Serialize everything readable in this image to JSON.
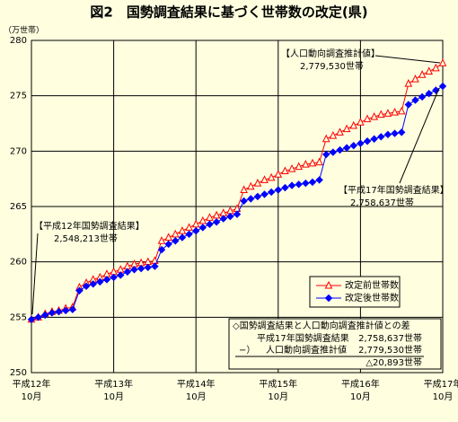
{
  "chart_data": {
    "type": "line",
    "title": "図2　国勢調査結果に基づく世帯数の改定(県)",
    "y_unit": "（万世帯）",
    "categories": [
      "平成12年\n10月",
      null,
      null,
      null,
      null,
      null,
      null,
      null,
      null,
      null,
      null,
      null,
      "平成13年\n10月",
      null,
      null,
      null,
      null,
      null,
      null,
      null,
      null,
      null,
      null,
      null,
      "平成14年\n10月",
      null,
      null,
      null,
      null,
      null,
      null,
      null,
      null,
      null,
      null,
      null,
      "平成15年\n10月",
      null,
      null,
      null,
      null,
      null,
      null,
      null,
      null,
      null,
      null,
      null,
      "平成16年\n10月",
      null,
      null,
      null,
      null,
      null,
      null,
      null,
      null,
      null,
      null,
      null,
      "平成17年\n10月"
    ],
    "series": [
      {
        "name": "改定前世帯数",
        "color": "#ff0000",
        "marker": "triangle",
        "values": [
          254.8,
          255.0,
          255.3,
          255.5,
          255.6,
          255.8,
          255.9,
          257.7,
          258.1,
          258.4,
          258.6,
          258.9,
          259.1,
          259.3,
          259.6,
          259.8,
          259.9,
          260.0,
          260.1,
          261.9,
          262.2,
          262.5,
          262.8,
          263.1,
          263.4,
          263.7,
          264.0,
          264.2,
          264.4,
          264.6,
          264.8,
          266.5,
          266.8,
          267.1,
          267.4,
          267.6,
          267.9,
          268.2,
          268.4,
          268.6,
          268.8,
          268.9,
          269.0,
          271.1,
          271.4,
          271.7,
          272.0,
          272.3,
          272.6,
          272.9,
          273.1,
          273.3,
          273.4,
          273.5,
          273.6,
          276.1,
          276.5,
          276.9,
          277.2,
          277.5,
          277.95
        ]
      },
      {
        "name": "改定後世帯数",
        "color": "#0000ff",
        "marker": "diamond",
        "values": [
          254.8,
          255.0,
          255.2,
          255.4,
          255.5,
          255.6,
          255.7,
          257.4,
          257.8,
          258.0,
          258.2,
          258.4,
          258.6,
          258.8,
          259.1,
          259.3,
          259.4,
          259.5,
          259.6,
          261.1,
          261.6,
          261.9,
          262.2,
          262.5,
          262.8,
          263.1,
          263.4,
          263.6,
          263.9,
          264.1,
          264.3,
          265.5,
          265.7,
          265.9,
          266.1,
          266.3,
          266.5,
          266.7,
          266.9,
          267.0,
          267.1,
          267.2,
          267.4,
          269.7,
          269.9,
          270.1,
          270.3,
          270.5,
          270.7,
          270.9,
          271.1,
          271.3,
          271.5,
          271.6,
          271.7,
          274.2,
          274.6,
          274.9,
          275.2,
          275.5,
          275.86
        ]
      }
    ],
    "ylim": [
      250,
      280
    ],
    "yticks": [
      250,
      255,
      260,
      265,
      270,
      275,
      280
    ],
    "grid": true,
    "annotations": [
      "【人口動向調査推計値】",
      "2,779,530世帯",
      "【平成17年国勢調査結果】",
      "2,758,637世帯",
      "【平成12年国勢調査結果】",
      "2,548,213世帯"
    ],
    "difference_box": {
      "title": "◇国勢調査結果と人口動向調査推計値との差",
      "rows": [
        {
          "label": "平成17年国勢調査結果",
          "value": "2,758,637世帯"
        },
        {
          "label": "人口動向調査推計値",
          "value": "2,779,530世帯"
        }
      ],
      "operator": "−）",
      "result": "△20,893世帯"
    }
  }
}
